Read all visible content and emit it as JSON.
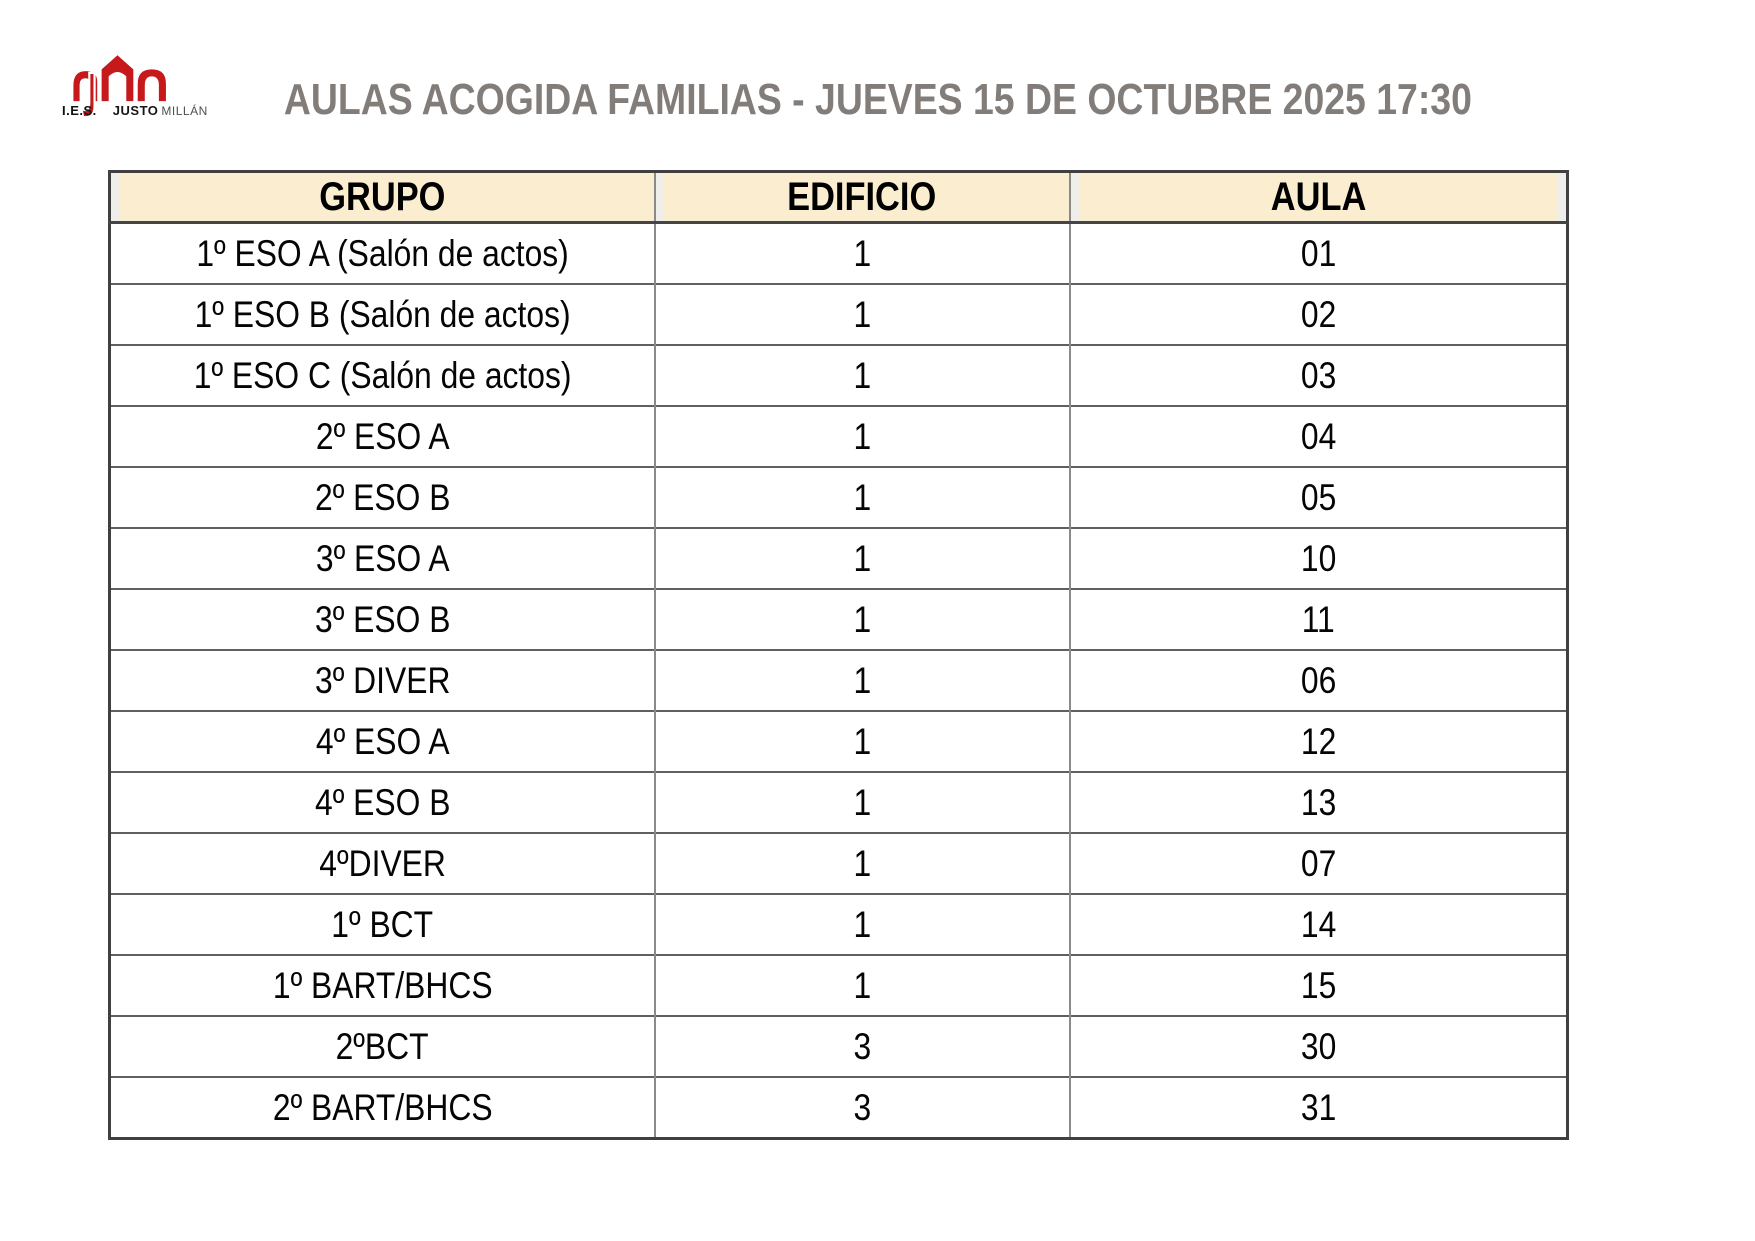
{
  "logo": {
    "ies": "I.E.S.",
    "justo": "JUSTO",
    "millan": "MILLÁN"
  },
  "title": "AULAS ACOGIDA FAMILIAS - JUEVES 15 DE OCTUBRE 2025 17:30",
  "colors": {
    "logo_red": "#c5191c",
    "title_gray": "#837d7a",
    "header_bg": "#fbeed0",
    "header_strip": "#efeeeb",
    "border_outer": "#404040",
    "border_row": "#606060",
    "border_col": "#8a8a8a",
    "text": "#000000"
  },
  "table": {
    "columns": [
      "GRUPO",
      "EDIFICIO",
      "AULA"
    ],
    "rows": [
      [
        "1º ESO A (Salón de actos)",
        "1",
        "01"
      ],
      [
        "1º ESO B (Salón de actos)",
        "1",
        "02"
      ],
      [
        "1º ESO C (Salón de actos)",
        "1",
        "03"
      ],
      [
        "2º ESO A",
        "1",
        "04"
      ],
      [
        "2º ESO B",
        "1",
        "05"
      ],
      [
        "3º ESO A",
        "1",
        "10"
      ],
      [
        "3º ESO B",
        "1",
        "11"
      ],
      [
        "3º DIVER",
        "1",
        "06"
      ],
      [
        "4º ESO A",
        "1",
        "12"
      ],
      [
        "4º ESO B",
        "1",
        "13"
      ],
      [
        "4ºDIVER",
        "1",
        "07"
      ],
      [
        "1º BCT",
        "1",
        "14"
      ],
      [
        "1º BART/BHCS",
        "1",
        "15"
      ],
      [
        "2ºBCT",
        "3",
        "30"
      ],
      [
        "2º BART/BHCS",
        "3",
        "31"
      ]
    ]
  }
}
